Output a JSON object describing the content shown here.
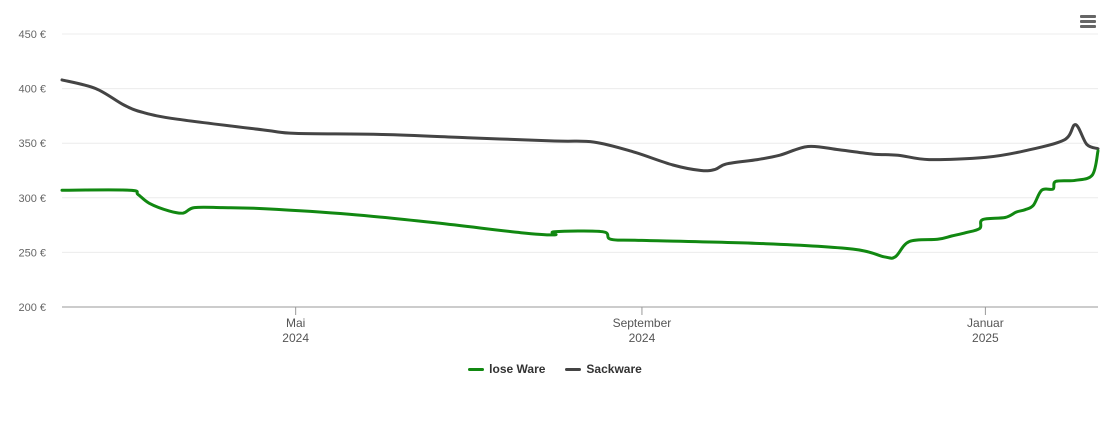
{
  "chart_data": {
    "type": "line",
    "y_ticks": [
      {
        "value": 200,
        "label": "200 €"
      },
      {
        "value": 250,
        "label": "250 €"
      },
      {
        "value": 300,
        "label": "300 €"
      },
      {
        "value": 350,
        "label": "350 €"
      },
      {
        "value": 400,
        "label": "400 €"
      },
      {
        "value": 450,
        "label": "450 €"
      }
    ],
    "ylim": [
      200,
      450
    ],
    "xlim": [
      "2024-02-08",
      "2025-02-10"
    ],
    "x_ticks": [
      {
        "date": "2024-05-01",
        "month": "Mai",
        "year": "2024"
      },
      {
        "date": "2024-09-01",
        "month": "September",
        "year": "2024"
      },
      {
        "date": "2025-01-01",
        "month": "Januar",
        "year": "2025"
      }
    ],
    "grid": true,
    "legend": "bottom-center",
    "series": [
      {
        "name": "lose Ware",
        "color": "#118811",
        "points": [
          [
            "2024-02-08",
            307
          ],
          [
            "2024-03-03",
            307
          ],
          [
            "2024-03-06",
            303
          ],
          [
            "2024-03-10",
            295
          ],
          [
            "2024-03-17",
            288
          ],
          [
            "2024-03-22",
            286
          ],
          [
            "2024-03-26",
            291
          ],
          [
            "2024-04-05",
            291
          ],
          [
            "2024-04-20",
            290
          ],
          [
            "2024-05-20",
            285
          ],
          [
            "2024-06-20",
            277
          ],
          [
            "2024-07-20",
            268
          ],
          [
            "2024-08-01",
            266
          ],
          [
            "2024-08-01",
            269
          ],
          [
            "2024-08-18",
            269
          ],
          [
            "2024-08-21",
            262
          ],
          [
            "2024-09-01",
            261
          ],
          [
            "2024-10-15",
            258
          ],
          [
            "2024-11-15",
            253
          ],
          [
            "2024-11-26",
            246
          ],
          [
            "2024-11-30",
            246
          ],
          [
            "2024-12-05",
            260
          ],
          [
            "2024-12-15",
            262
          ],
          [
            "2024-12-20",
            265
          ],
          [
            "2024-12-25",
            268
          ],
          [
            "2024-12-30",
            272
          ],
          [
            "2024-12-31",
            280
          ],
          [
            "2025-01-08",
            282
          ],
          [
            "2025-01-12",
            287
          ],
          [
            "2025-01-15",
            289
          ],
          [
            "2025-01-18",
            293
          ],
          [
            "2025-01-21",
            307
          ],
          [
            "2025-01-25",
            308
          ],
          [
            "2025-01-26",
            315
          ],
          [
            "2025-02-02",
            316
          ],
          [
            "2025-02-08",
            321
          ],
          [
            "2025-02-10",
            343
          ]
        ]
      },
      {
        "name": "Sackware",
        "color": "#444444",
        "points": [
          [
            "2024-02-08",
            408
          ],
          [
            "2024-02-20",
            400
          ],
          [
            "2024-03-01",
            385
          ],
          [
            "2024-03-08",
            378
          ],
          [
            "2024-03-20",
            372
          ],
          [
            "2024-04-20",
            362
          ],
          [
            "2024-05-01",
            359
          ],
          [
            "2024-06-01",
            358
          ],
          [
            "2024-07-01",
            355
          ],
          [
            "2024-08-01",
            352
          ],
          [
            "2024-08-15",
            351
          ],
          [
            "2024-08-29",
            342
          ],
          [
            "2024-09-12",
            330
          ],
          [
            "2024-09-22",
            325
          ],
          [
            "2024-09-27",
            326
          ],
          [
            "2024-10-01",
            331
          ],
          [
            "2024-10-12",
            335
          ],
          [
            "2024-10-20",
            339
          ],
          [
            "2024-10-30",
            347
          ],
          [
            "2024-11-10",
            344
          ],
          [
            "2024-11-22",
            340
          ],
          [
            "2024-12-01",
            339
          ],
          [
            "2024-12-12",
            335
          ],
          [
            "2025-01-01",
            337
          ],
          [
            "2025-01-15",
            343
          ],
          [
            "2025-01-29",
            353
          ],
          [
            "2025-02-02",
            367
          ],
          [
            "2025-02-06",
            349
          ],
          [
            "2025-02-10",
            345
          ]
        ]
      }
    ]
  }
}
